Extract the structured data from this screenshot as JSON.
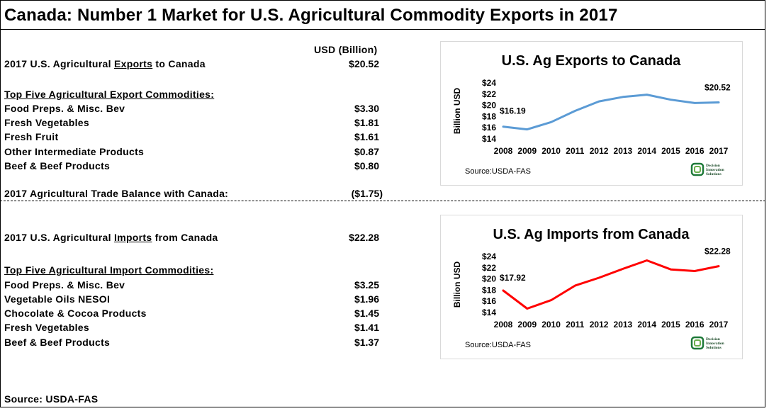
{
  "title": "Canada: Number 1 Market for U.S. Agricultural Commodity Exports in 2017",
  "usd_header": "USD (Billion)",
  "exports": {
    "label_pre": "2017 U.S. Agricultural ",
    "label_u": "Exports",
    "label_post": " to Canada",
    "value": "$20.52",
    "top_heading": "Top Five Agricultural Export Commodities:",
    "items": [
      {
        "name": "Food Preps. & Misc. Bev",
        "value": "$3.30"
      },
      {
        "name": "Fresh Vegetables",
        "value": "$1.81"
      },
      {
        "name": "Fresh Fruit",
        "value": "$1.61"
      },
      {
        "name": "Other Intermediate Products",
        "value": "$0.87"
      },
      {
        "name": "Beef & Beef Products",
        "value": "$0.80"
      }
    ],
    "balance_label": "2017 Agricultural Trade Balance with Canada:",
    "balance_value": "($1.75)"
  },
  "imports": {
    "label_pre": "2017 U.S. Agricultural ",
    "label_u": "Imports",
    "label_post": " from Canada",
    "value": "$22.28",
    "top_heading": "Top Five Agricultural Import Commodities:",
    "items": [
      {
        "name": "Food Preps. & Misc. Bev",
        "value": "$3.25"
      },
      {
        "name": "Vegetable Oils NESOI",
        "value": "$1.96"
      },
      {
        "name": "Chocolate & Cocoa Products",
        "value": "$1.45"
      },
      {
        "name": "Fresh Vegetables",
        "value": "$1.41"
      },
      {
        "name": "Beef & Beef Products",
        "value": "$1.37"
      }
    ]
  },
  "footer_source": "Source: USDA-FAS",
  "logo_text": [
    "Decision",
    "Innovation",
    "Solutions"
  ],
  "chart_data": [
    {
      "type": "line",
      "title": "U.S. Ag Exports to Canada",
      "ylabel": "Billion USD",
      "xlabel": "",
      "x": [
        "2008",
        "2009",
        "2010",
        "2011",
        "2012",
        "2013",
        "2014",
        "2015",
        "2016",
        "2017"
      ],
      "y_ticks": [
        "$14",
        "$16",
        "$18",
        "$20",
        "$22",
        "$24"
      ],
      "ylim": [
        14,
        24
      ],
      "series": [
        {
          "values": [
            16.19,
            15.7,
            17.0,
            19.0,
            20.7,
            21.5,
            21.9,
            21.0,
            20.4,
            20.52
          ],
          "color": "#5b9bd5"
        }
      ],
      "annotations": {
        "first": "$16.19",
        "last": "$20.52"
      },
      "source": "Source:USDA-FAS",
      "grid": false
    },
    {
      "type": "line",
      "title": "U.S. Ag Imports from Canada",
      "ylabel": "Billion USD",
      "xlabel": "",
      "x": [
        "2008",
        "2009",
        "2010",
        "2011",
        "2012",
        "2013",
        "2014",
        "2015",
        "2016",
        "2017"
      ],
      "y_ticks": [
        "$14",
        "$16",
        "$18",
        "$20",
        "$22",
        "$24"
      ],
      "ylim": [
        14,
        24
      ],
      "series": [
        {
          "values": [
            17.92,
            14.7,
            16.2,
            18.8,
            20.2,
            21.8,
            23.3,
            21.7,
            21.4,
            22.28
          ],
          "color": "#ff0000"
        }
      ],
      "annotations": {
        "first": "$17.92",
        "last": "$22.28"
      },
      "source": "Source:USDA-FAS",
      "grid": false
    }
  ]
}
